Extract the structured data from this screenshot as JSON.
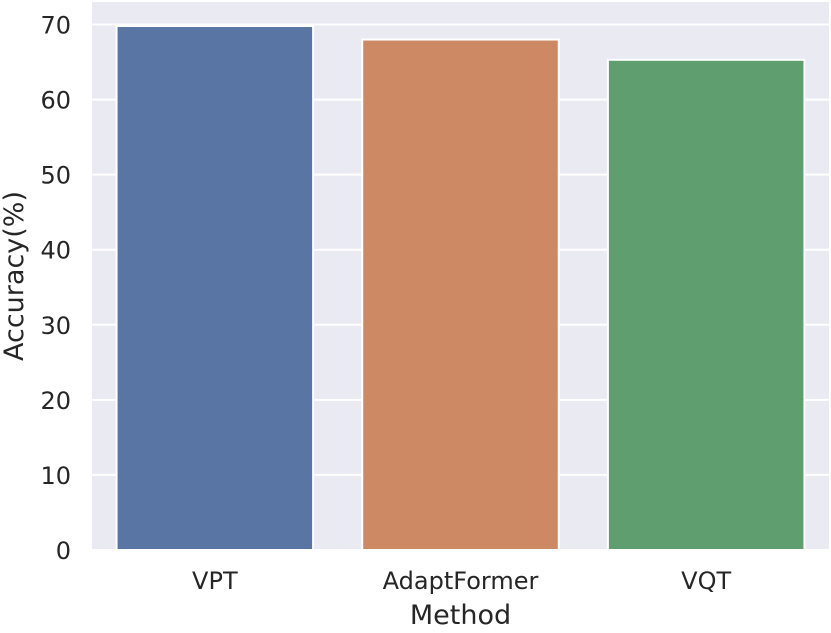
{
  "chart_data": {
    "type": "bar",
    "title": "",
    "xlabel": "Method",
    "ylabel": "Accuracy(%)",
    "categories": [
      "VPT",
      "AdaptFormer",
      "VQT"
    ],
    "values": [
      69.8,
      68.0,
      65.3
    ],
    "ylim": [
      0,
      73
    ],
    "yticks": [
      0,
      10,
      20,
      30,
      40,
      50,
      60,
      70
    ],
    "grid": true,
    "background_color": "#EAEAF2",
    "grid_color": "#FFFFFF",
    "bar_colors": [
      "#5975A4",
      "#CC8963",
      "#5F9E6E"
    ]
  }
}
